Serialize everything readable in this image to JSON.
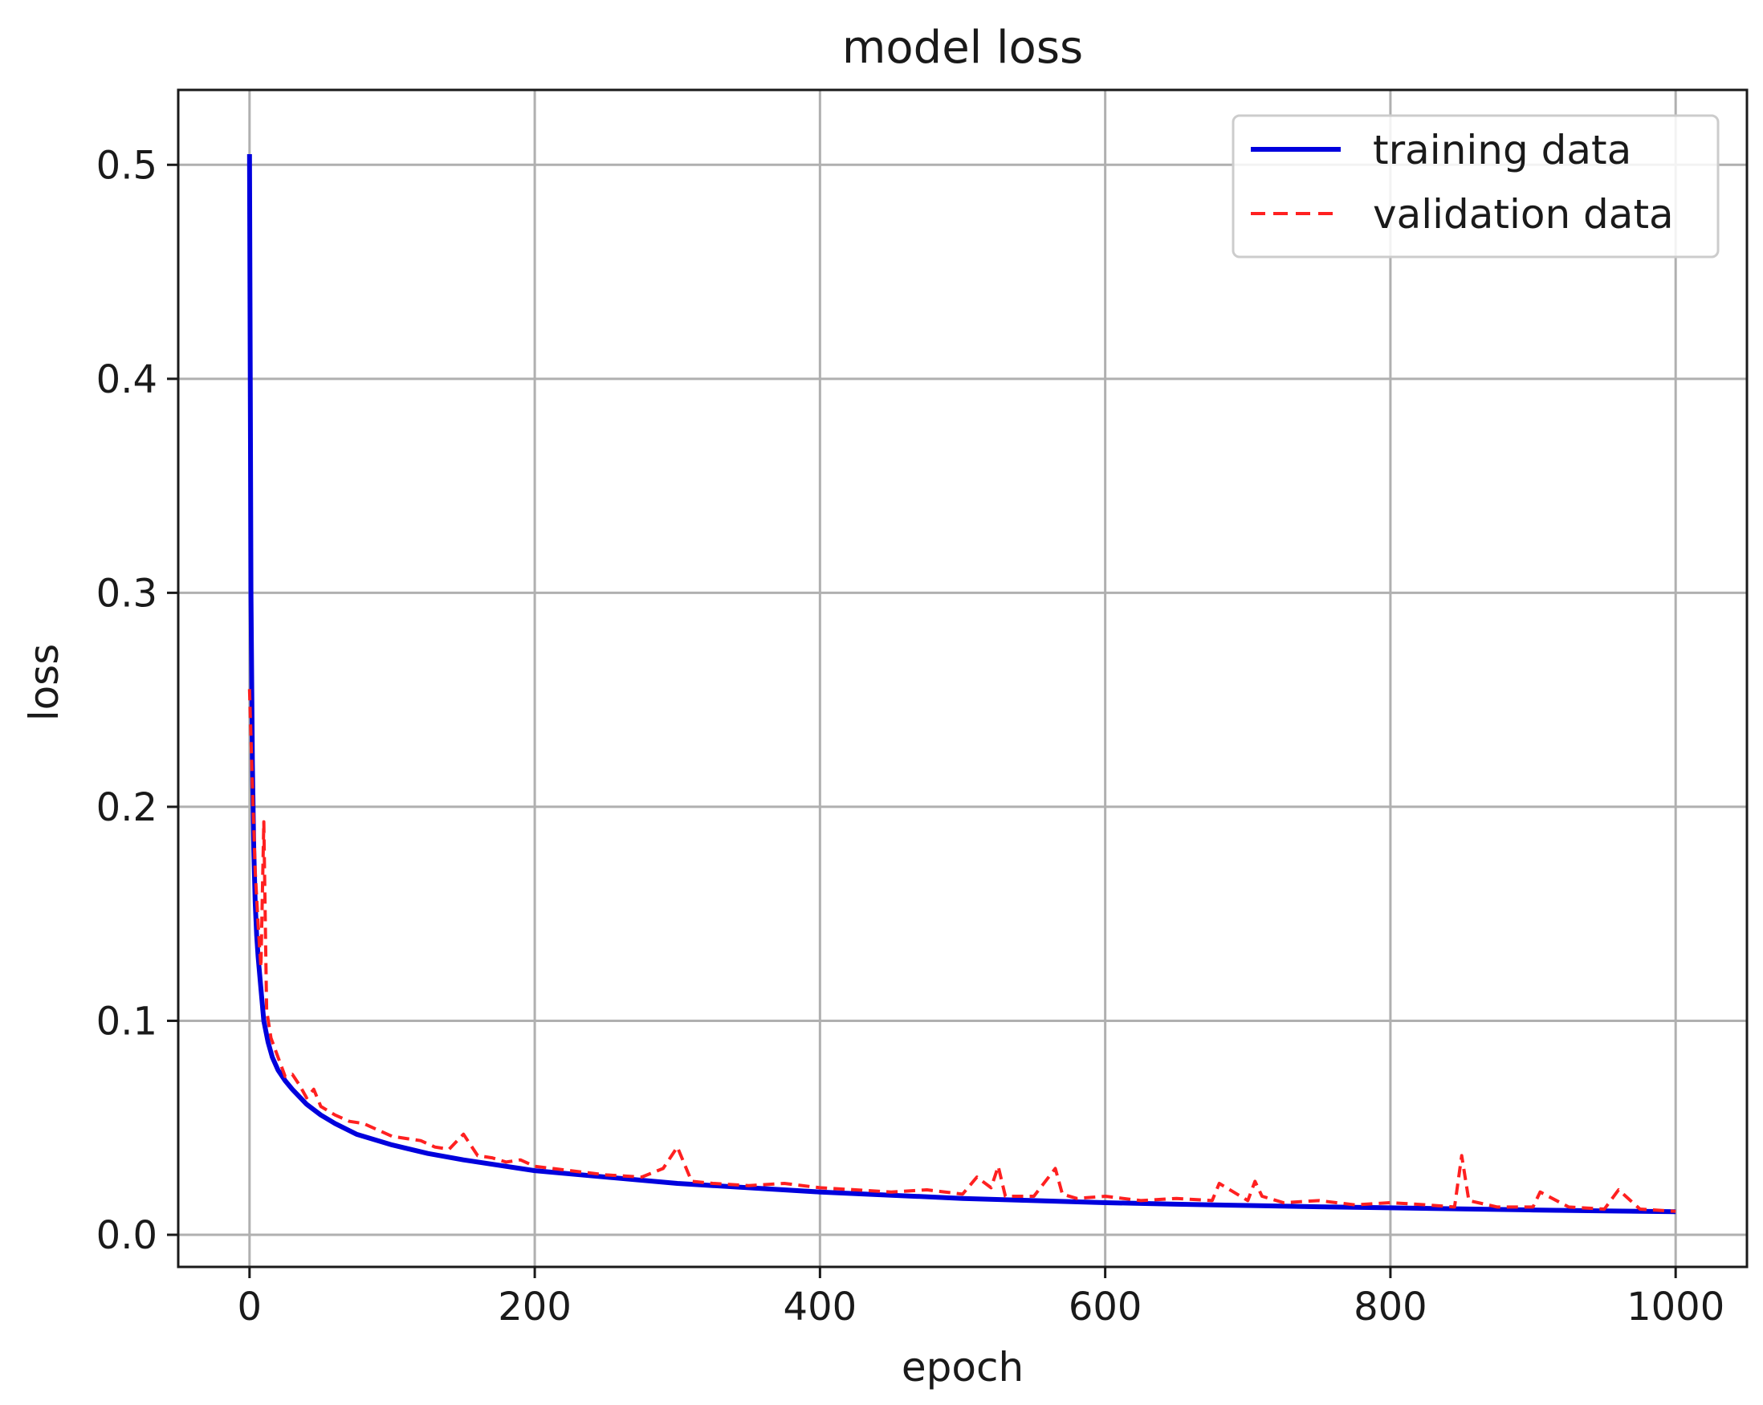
{
  "chart_data": {
    "type": "line",
    "title": "model loss",
    "xlabel": "epoch",
    "ylabel": "loss",
    "xlim": [
      -50,
      1050
    ],
    "ylim": [
      -0.015,
      0.535
    ],
    "grid": true,
    "legend_position": "top-right",
    "x_ticks": [
      0,
      200,
      400,
      600,
      800,
      1000
    ],
    "x_tick_labels": [
      "0",
      "200",
      "400",
      "600",
      "800",
      "1000"
    ],
    "y_ticks": [
      0.0,
      0.1,
      0.2,
      0.3,
      0.4,
      0.5
    ],
    "y_tick_labels": [
      "0.0",
      "0.1",
      "0.2",
      "0.3",
      "0.4",
      "0.5"
    ],
    "series": [
      {
        "name": "training data",
        "color": "#0000dd",
        "style": "solid",
        "x": [
          0,
          1,
          2,
          3,
          4,
          5,
          6,
          8,
          10,
          13,
          16,
          20,
          25,
          30,
          40,
          50,
          60,
          75,
          100,
          125,
          150,
          200,
          250,
          300,
          350,
          400,
          450,
          500,
          550,
          600,
          650,
          700,
          750,
          800,
          850,
          900,
          950,
          1000
        ],
        "y": [
          0.505,
          0.3,
          0.22,
          0.18,
          0.155,
          0.14,
          0.13,
          0.115,
          0.1,
          0.09,
          0.083,
          0.077,
          0.072,
          0.068,
          0.061,
          0.056,
          0.052,
          0.047,
          0.042,
          0.038,
          0.035,
          0.03,
          0.027,
          0.024,
          0.022,
          0.02,
          0.0185,
          0.017,
          0.016,
          0.015,
          0.0143,
          0.0137,
          0.0131,
          0.0126,
          0.0121,
          0.0116,
          0.0112,
          0.0108
        ]
      },
      {
        "name": "validation data",
        "color": "#ff2020",
        "style": "dashed",
        "x": [
          0,
          2,
          4,
          6,
          8,
          10,
          12,
          15,
          20,
          25,
          30,
          35,
          40,
          45,
          50,
          60,
          70,
          80,
          90,
          100,
          110,
          120,
          130,
          140,
          150,
          160,
          170,
          180,
          190,
          200,
          225,
          250,
          275,
          290,
          300,
          310,
          325,
          350,
          375,
          400,
          425,
          450,
          475,
          500,
          510,
          520,
          525,
          530,
          550,
          565,
          570,
          580,
          600,
          625,
          650,
          675,
          680,
          700,
          705,
          710,
          725,
          750,
          775,
          800,
          825,
          845,
          850,
          855,
          875,
          900,
          905,
          925,
          950,
          960,
          975,
          1000
        ],
        "y": [
          0.255,
          0.21,
          0.17,
          0.145,
          0.125,
          0.193,
          0.105,
          0.092,
          0.083,
          0.074,
          0.075,
          0.07,
          0.064,
          0.068,
          0.06,
          0.056,
          0.053,
          0.052,
          0.049,
          0.046,
          0.045,
          0.044,
          0.041,
          0.04,
          0.047,
          0.037,
          0.036,
          0.034,
          0.035,
          0.032,
          0.03,
          0.028,
          0.027,
          0.031,
          0.041,
          0.025,
          0.024,
          0.023,
          0.024,
          0.022,
          0.021,
          0.02,
          0.021,
          0.019,
          0.027,
          0.022,
          0.032,
          0.018,
          0.018,
          0.031,
          0.019,
          0.017,
          0.018,
          0.016,
          0.017,
          0.016,
          0.024,
          0.016,
          0.025,
          0.018,
          0.015,
          0.016,
          0.014,
          0.015,
          0.014,
          0.013,
          0.037,
          0.016,
          0.013,
          0.013,
          0.02,
          0.013,
          0.012,
          0.021,
          0.012,
          0.011
        ]
      }
    ]
  }
}
